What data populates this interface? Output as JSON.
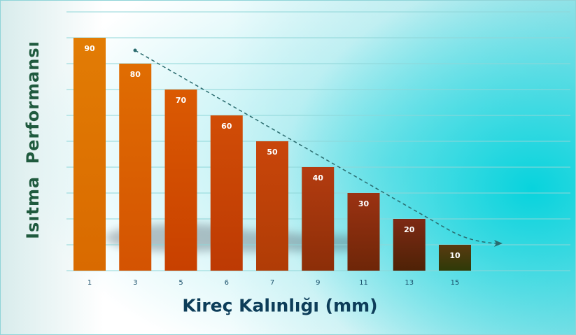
{
  "chart_data": {
    "type": "bar",
    "categories": [
      "1",
      "3",
      "5",
      "6",
      "7",
      "9",
      "11",
      "13",
      "15"
    ],
    "values": [
      90,
      80,
      70,
      60,
      50,
      40,
      30,
      20,
      10
    ],
    "xlabel": "Kireç Kalınlığı (mm)",
    "ylabel": "Isıtma  Performansı",
    "ylim": [
      0,
      90
    ],
    "grid": true,
    "trend_arrow": "decreasing",
    "colors": {
      "bar_top": [
        "#e27c04",
        "#e06d02",
        "#db5a02",
        "#d14d06",
        "#c9460a",
        "#b43c10",
        "#9b3212",
        "#7e2a14",
        "#5a3a10"
      ],
      "bar_bottom": [
        "#d96a00",
        "#d45302",
        "#c84000",
        "#bd3a04",
        "#b03c06",
        "#8c2e08",
        "#6e2608",
        "#4e2206",
        "#2e3a08"
      ],
      "value_label": "#ffffff",
      "tick_label": "#1a4f6a",
      "grid": "#8fd6d8",
      "arrow": "#2a6b6e"
    }
  }
}
